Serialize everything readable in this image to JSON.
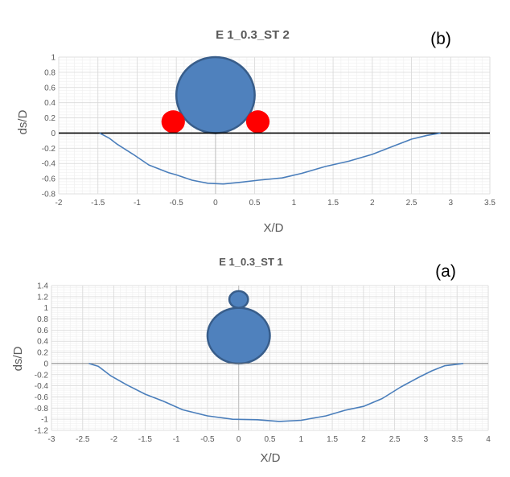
{
  "chart_data": [
    {
      "type": "line",
      "panel_label": "(b)",
      "title": "E 1_0.3_ST 2",
      "xlabel": "X/D",
      "ylabel": "ds/D",
      "xlim": [
        -2,
        3.5
      ],
      "ylim": [
        -0.8,
        1
      ],
      "x_ticks": [
        "-2",
        "-1.5",
        "-1",
        "-0.5",
        "0",
        "0.5",
        "1",
        "1.5",
        "2",
        "2.5",
        "3",
        "3.5"
      ],
      "y_ticks": [
        "1",
        "0.8",
        "0.6",
        "0.4",
        "0.2",
        "0",
        "-0.2",
        "-0.4",
        "-0.6",
        "-0.8"
      ],
      "grid": true,
      "reference_line_y": 0,
      "series": [
        {
          "x": [
            -1.48,
            -1.35,
            -1.25,
            -1.05,
            -0.85,
            -0.6,
            -0.5,
            -0.3,
            -0.1,
            0.1,
            0.3,
            0.55,
            0.85,
            1.1,
            1.4,
            1.7,
            2.0,
            2.25,
            2.5,
            2.7,
            2.87
          ],
          "y": [
            0.0,
            -0.07,
            -0.15,
            -0.28,
            -0.42,
            -0.52,
            -0.55,
            -0.62,
            -0.66,
            -0.67,
            -0.65,
            -0.62,
            -0.59,
            -0.53,
            -0.44,
            -0.37,
            -0.28,
            -0.18,
            -0.08,
            -0.03,
            0.0
          ]
        }
      ],
      "shapes": [
        {
          "kind": "circle",
          "cx": 0,
          "cy": 0.5,
          "r": 0.5,
          "color": "#4f81bd"
        },
        {
          "kind": "circle",
          "cx": -0.54,
          "cy": 0.15,
          "r": 0.15,
          "color": "#ff0000"
        },
        {
          "kind": "circle",
          "cx": 0.54,
          "cy": 0.15,
          "r": 0.15,
          "color": "#ff0000"
        }
      ]
    },
    {
      "type": "line",
      "panel_label": "(a)",
      "title": "E 1_0.3_ST 1",
      "xlabel": "X/D",
      "ylabel": "ds/D",
      "xlim": [
        -3,
        4
      ],
      "ylim": [
        -1.2,
        1.4
      ],
      "x_ticks": [
        "-3",
        "-2.5",
        "-2",
        "-1.5",
        "-1",
        "-0.5",
        "0",
        "0.5",
        "1",
        "1.5",
        "2",
        "2.5",
        "3",
        "3.5",
        "4"
      ],
      "y_ticks": [
        "1.4",
        "1.2",
        "1",
        "0.8",
        "0.6",
        "0.4",
        "0.2",
        "0",
        "-0.2",
        "-0.4",
        "-0.6",
        "-0.8",
        "-1",
        "-1.2"
      ],
      "grid": true,
      "reference_line_y": 0,
      "series": [
        {
          "x": [
            -2.4,
            -2.25,
            -2.05,
            -1.8,
            -1.5,
            -1.2,
            -0.9,
            -0.5,
            -0.1,
            0.3,
            0.65,
            1.0,
            1.4,
            1.7,
            2.0,
            2.3,
            2.6,
            2.9,
            3.1,
            3.3,
            3.6
          ],
          "y": [
            0.0,
            -0.05,
            -0.22,
            -0.38,
            -0.55,
            -0.68,
            -0.83,
            -0.94,
            -1.0,
            -1.01,
            -1.04,
            -1.02,
            -0.94,
            -0.84,
            -0.77,
            -0.63,
            -0.42,
            -0.24,
            -0.13,
            -0.04,
            0.0
          ]
        }
      ],
      "shapes": [
        {
          "kind": "circle",
          "cx": 0,
          "cy": 0.5,
          "r": 0.5,
          "color": "#4f81bd"
        },
        {
          "kind": "circle",
          "cx": 0,
          "cy": 1.15,
          "r": 0.15,
          "color": "#4f81bd"
        }
      ]
    }
  ]
}
